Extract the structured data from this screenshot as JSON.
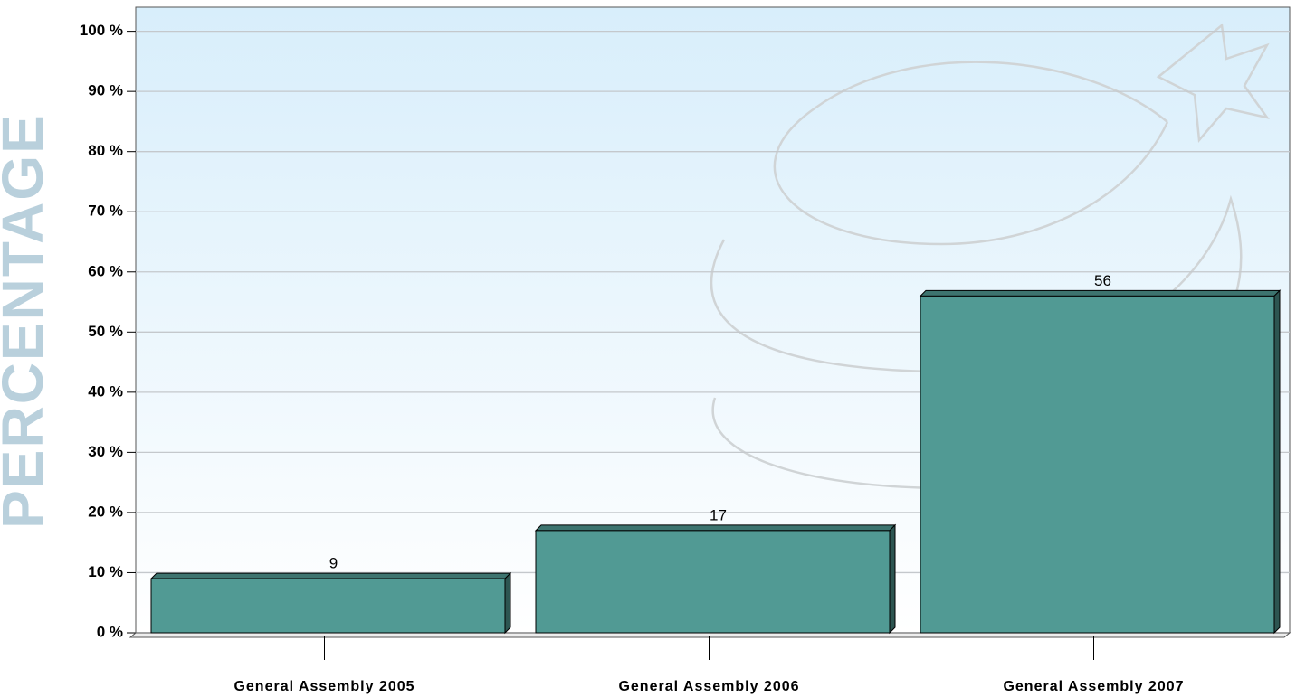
{
  "chart_data": {
    "type": "bar",
    "y_axis_label": "PERCENTAGE",
    "categories": [
      "General Assembly 2005",
      "General Assembly 2006",
      "General Assembly 2007"
    ],
    "values": [
      9,
      17,
      56
    ],
    "color": "#519a94",
    "ylim": [
      0,
      104
    ],
    "yticks": [
      {
        "value": 0,
        "label": "0 %"
      },
      {
        "value": 10,
        "label": "10 %"
      },
      {
        "value": 20,
        "label": "20 %"
      },
      {
        "value": 30,
        "label": "30 %"
      },
      {
        "value": 40,
        "label": "40 %"
      },
      {
        "value": 50,
        "label": "50 %"
      },
      {
        "value": 60,
        "label": "60 %"
      },
      {
        "value": 70,
        "label": "70 %"
      },
      {
        "value": 80,
        "label": "80 %"
      },
      {
        "value": 90,
        "label": "90 %"
      },
      {
        "value": 100,
        "label": "100 %"
      }
    ],
    "grid": true
  }
}
